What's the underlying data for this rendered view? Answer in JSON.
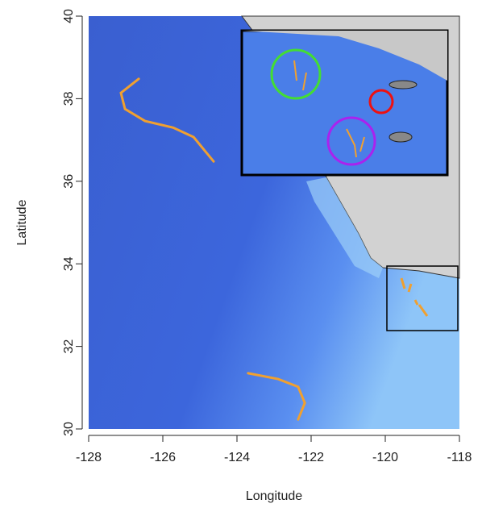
{
  "chart_data": {
    "type": "map",
    "x_label": "Longitude",
    "y_label": "Latitude",
    "xlim": [
      -128,
      -118
    ],
    "ylim": [
      30,
      40
    ],
    "xticks": [
      -128,
      -126,
      -124,
      -122,
      -120,
      -118
    ],
    "yticks": [
      30,
      32,
      34,
      36,
      38,
      40
    ],
    "series": [
      {
        "color": "#f0a030",
        "x": [
          -126.65,
          -127.13,
          -127.02,
          -126.48,
          -125.72,
          -125.17,
          -124.63
        ],
        "y": [
          38.48,
          38.14,
          37.75,
          37.46,
          37.3,
          37.07,
          36.48
        ]
      },
      {
        "color": "#f0a030",
        "x": [
          -123.7,
          -122.89,
          -122.35,
          -122.17,
          -122.35
        ],
        "y": [
          31.35,
          31.21,
          31.02,
          30.63,
          30.23
        ]
      }
    ]
  }
}
